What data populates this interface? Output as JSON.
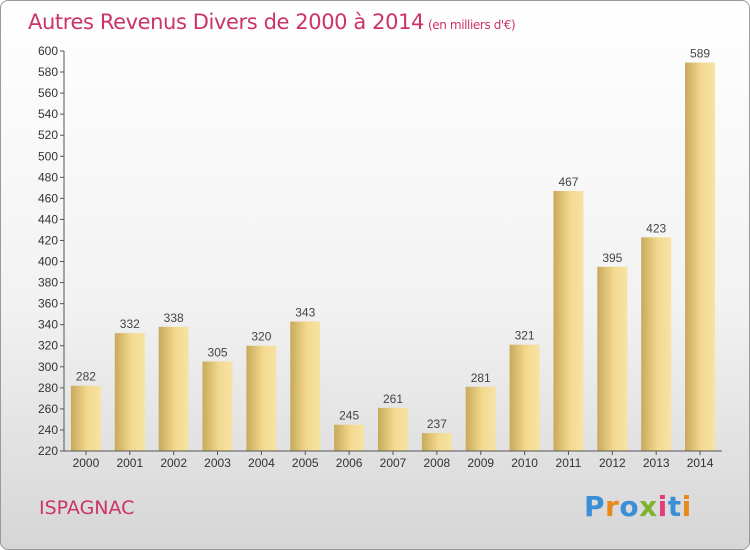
{
  "header": {
    "title": "Autres Revenus Divers de 2000 à 2014",
    "unit": "(en milliers d'€)"
  },
  "footer": {
    "commune": "ISPAGNAC",
    "logo": "Proxiti"
  },
  "colors": {
    "title": "#cc3366",
    "bar_light": "#f6df9a",
    "bar_dark": "#c8a95a",
    "axis": "#555555"
  },
  "chart_data": {
    "type": "bar",
    "title": "Autres Revenus Divers de 2000 à 2014",
    "subtitle": "(en milliers d'€)",
    "xlabel": "",
    "ylabel": "",
    "categories": [
      "2000",
      "2001",
      "2002",
      "2003",
      "2004",
      "2005",
      "2006",
      "2007",
      "2008",
      "2009",
      "2010",
      "2011",
      "2012",
      "2013",
      "2014"
    ],
    "values": [
      282,
      332,
      338,
      305,
      320,
      343,
      245,
      261,
      237,
      281,
      321,
      467,
      395,
      423,
      589
    ],
    "ylim": [
      220,
      600
    ],
    "yticks": [
      220,
      240,
      260,
      280,
      300,
      320,
      340,
      360,
      380,
      400,
      420,
      440,
      460,
      480,
      500,
      520,
      540,
      560,
      580,
      600
    ],
    "grid": false,
    "legend": "none"
  }
}
